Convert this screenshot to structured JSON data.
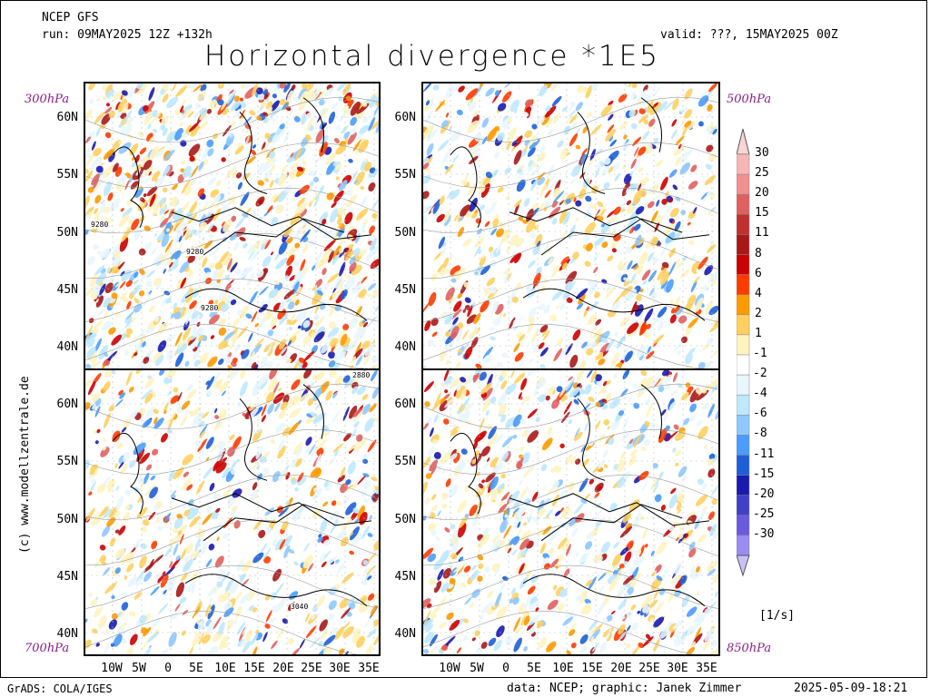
{
  "header": {
    "model": "NCEP GFS",
    "run": "run: 09MAY2025 12Z +132h",
    "valid": "valid: ???, 15MAY2025 00Z",
    "title": "Horizontal divergence *1E5"
  },
  "levels": {
    "top_left": "300hPa",
    "top_right": "500hPa",
    "bottom_left": "700hPa",
    "bottom_right": "850hPa"
  },
  "lat_labels": [
    "60N",
    "55N",
    "50N",
    "45N",
    "40N"
  ],
  "lon_labels": [
    "10W",
    "5W",
    "0",
    "5E",
    "10E",
    "15E",
    "20E",
    "25E",
    "30E",
    "35E"
  ],
  "contour_labels": {
    "p300_a": "9280",
    "p300_b": "9280",
    "p300_c": "9280",
    "p700_a": "2880",
    "p700_b": "3040"
  },
  "colorbar": {
    "unit": "[1/s]",
    "levels": [
      {
        "label": "30",
        "color": "#f7b6b6"
      },
      {
        "label": "25",
        "color": "#f09090"
      },
      {
        "label": "20",
        "color": "#e06060"
      },
      {
        "label": "15",
        "color": "#c03030"
      },
      {
        "label": "11",
        "color": "#a81818"
      },
      {
        "label": "8",
        "color": "#cc0000"
      },
      {
        "label": "6",
        "color": "#ff3c00"
      },
      {
        "label": "4",
        "color": "#ff9a00"
      },
      {
        "label": "2",
        "color": "#ffd060"
      },
      {
        "label": "1",
        "color": "#fff3c0"
      },
      {
        "label": "-1",
        "color": "#ffffff"
      },
      {
        "label": "-2",
        "color": "#e8f6ff"
      },
      {
        "label": "-4",
        "color": "#bfe8ff"
      },
      {
        "label": "-6",
        "color": "#8fc8ff"
      },
      {
        "label": "-8",
        "color": "#4a9cff"
      },
      {
        "label": "-11",
        "color": "#1e5fd8"
      },
      {
        "label": "-15",
        "color": "#1a1ab0"
      },
      {
        "label": "-20",
        "color": "#4040c8"
      },
      {
        "label": "-25",
        "color": "#6a5ae0"
      },
      {
        "label": "-30",
        "color": "#9a8cf0"
      }
    ],
    "top_triangle_color": "#fcd4d4",
    "bottom_triangle_color": "#c8c0f8"
  },
  "side_text": "(c) www.modellzentrale.de",
  "footer": {
    "left": "GrADS: COLA/IGES",
    "middle": "data: NCEP; graphic: Janek Zimmer",
    "right": "2025-05-09-18:21"
  }
}
